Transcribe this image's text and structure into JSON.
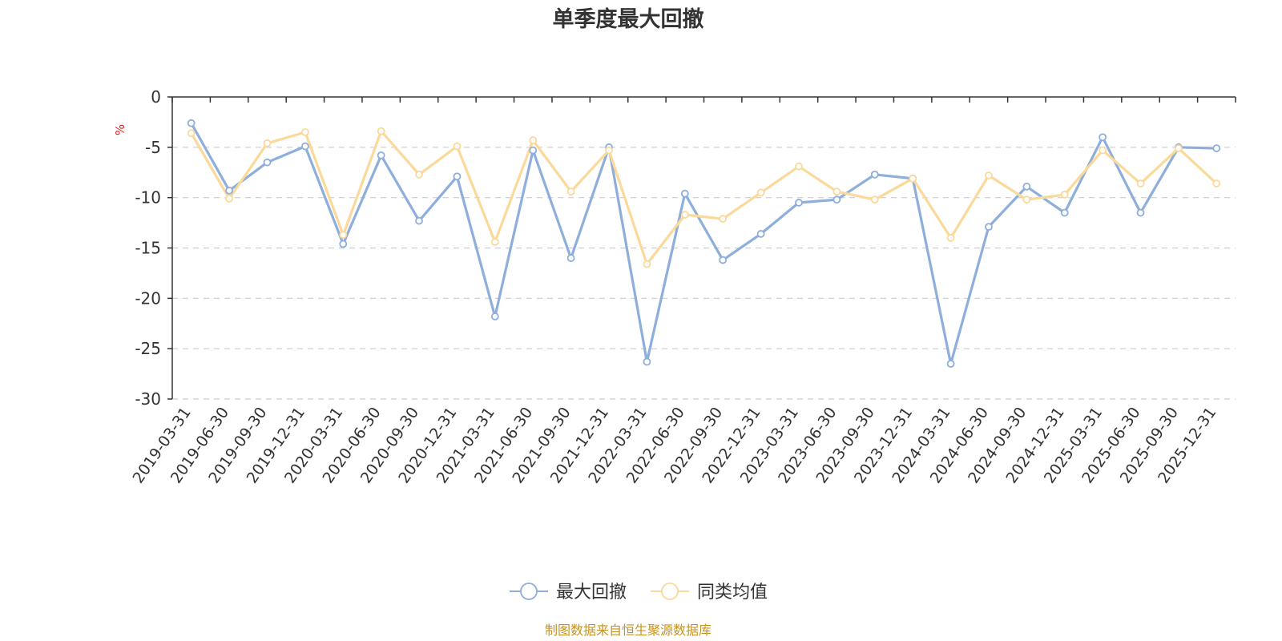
{
  "chart_data": {
    "type": "line",
    "title": "单季度最大回撤",
    "ylabel": "%",
    "ylim": [
      -30,
      0
    ],
    "yticks": [
      0,
      -5,
      -10,
      -15,
      -20,
      -25,
      -30
    ],
    "grid": true,
    "legend_position": "bottom-center",
    "categories": [
      "2019-03-31",
      "2019-06-30",
      "2019-09-30",
      "2019-12-31",
      "2020-03-31",
      "2020-06-30",
      "2020-09-30",
      "2020-12-31",
      "2021-03-31",
      "2021-06-30",
      "2021-09-30",
      "2021-12-31",
      "2022-03-31",
      "2022-06-30",
      "2022-09-30",
      "2022-12-31",
      "2023-03-31",
      "2023-06-30",
      "2023-09-30",
      "2023-12-31",
      "2024-03-31",
      "2024-06-30",
      "2024-09-30",
      "2024-12-31",
      "2025-03-31",
      "2025-06-30",
      "2025-09-30",
      "2025-12-31"
    ],
    "series": [
      {
        "name": "最大回撤",
        "color": "#8eaedb",
        "values": [
          -2.6,
          -9.3,
          -6.5,
          -4.9,
          -14.6,
          -5.8,
          -12.3,
          -7.9,
          -21.8,
          -5.3,
          -16.0,
          -5.0,
          -26.3,
          -9.6,
          -16.2,
          -13.6,
          -10.5,
          -10.2,
          -7.7,
          -8.1,
          -26.5,
          -12.9,
          -8.9,
          -11.5,
          -4.0,
          -11.5,
          -5.0,
          -5.1
        ]
      },
      {
        "name": "同类均值",
        "color": "#fad99a",
        "values": [
          -3.6,
          -10.1,
          -4.6,
          -3.5,
          -13.7,
          -3.4,
          -7.7,
          -4.9,
          -14.4,
          -4.3,
          -9.4,
          -5.3,
          -16.6,
          -11.7,
          -12.1,
          -9.5,
          -6.9,
          -9.4,
          -10.2,
          -8.1,
          -14.0,
          -7.8,
          -10.2,
          -9.7,
          -5.3,
          -8.6,
          -5.1,
          -8.6
        ]
      }
    ]
  },
  "footer": {
    "source": "制图数据来自恒生聚源数据库"
  }
}
